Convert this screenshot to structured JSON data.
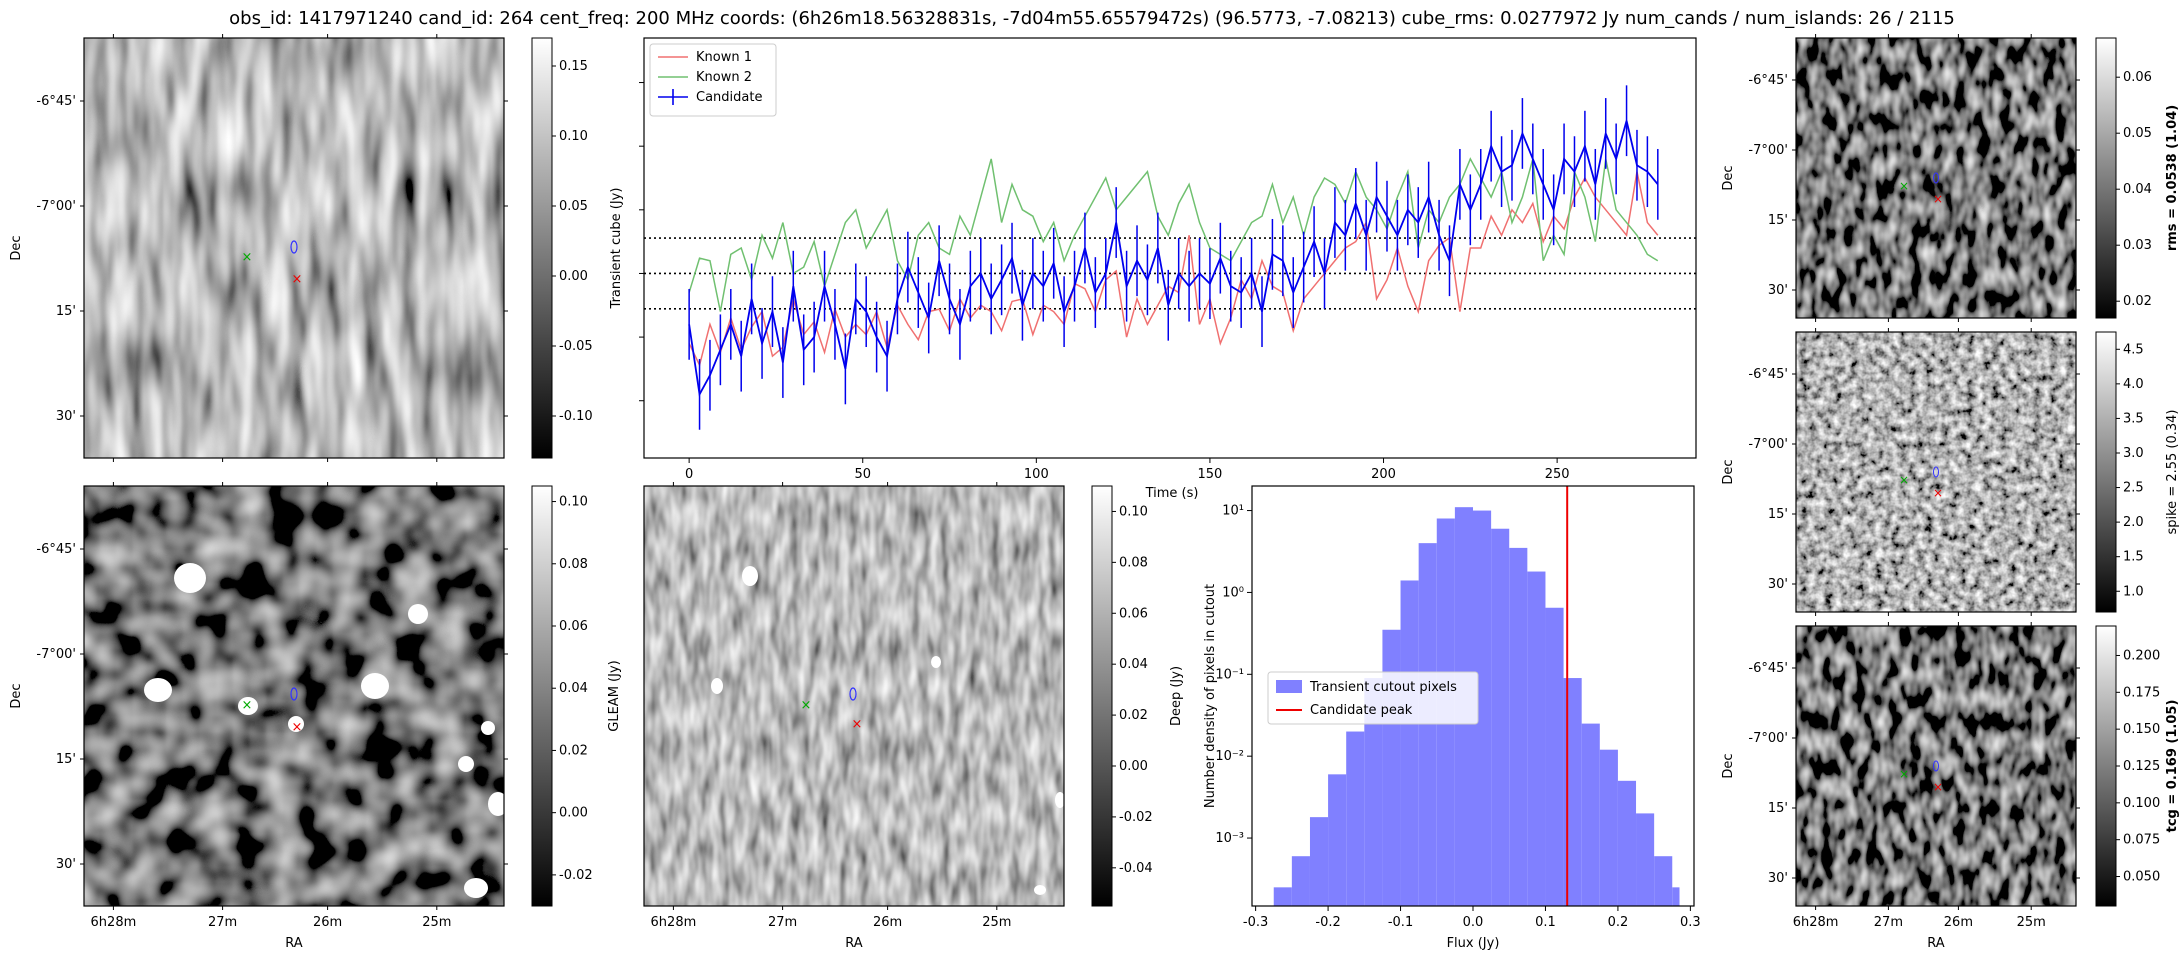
{
  "title": "obs_id: 1417971240 cand_id: 264 cent_freq: 200 MHz coords: (6h26m18.56328831s, -7d04m55.65579472s) (96.5773, -7.08213) cube_rms: 0.0277972 Jy num_cands / num_islands: 26 / 2115",
  "ra_ticks": [
    "28",
    "27",
    "26",
    "25"
  ],
  "ra_ticks_top": [
    "6h28m",
    "27m",
    "26m",
    "25m"
  ],
  "dec_ticks": [
    "-6°45'",
    "-7°00'",
    "15'",
    "30'"
  ],
  "colors": {
    "known1": "#f07070",
    "known2": "#70c070",
    "candidate": "#0000ee",
    "hist": "#8080ff",
    "peak": "#ee0000"
  },
  "chart_data": [
    {
      "type": "image",
      "name": "transient-cutout",
      "xlabel": "",
      "ylabel": "Dec",
      "colorbar_label": "",
      "colorbar_ticks": [
        "0.15",
        "0.10",
        "0.05",
        "0.00",
        "-0.05",
        "-0.10"
      ],
      "colorbar_range": [
        -0.13,
        0.17
      ]
    },
    {
      "type": "line",
      "title": "",
      "xlabel": "Time (s)",
      "ylabel": "Transient cube (Jy)",
      "xlim": [
        -13,
        290
      ],
      "ylim": [
        -0.145,
        0.185
      ],
      "x_ticks": [
        "0",
        "50",
        "100",
        "150",
        "200",
        "250"
      ],
      "legend": [
        "Known 1",
        "Known 2",
        "Candidate"
      ],
      "hlines": [
        -0.0278,
        0,
        0.0278
      ],
      "series": [
        {
          "name": "Known 1",
          "values": [
            -0.055,
            -0.072,
            -0.04,
            -0.062,
            -0.035,
            -0.06,
            -0.042,
            -0.03,
            -0.065,
            -0.058,
            -0.02,
            -0.048,
            -0.038,
            -0.062,
            -0.028,
            -0.05,
            -0.04,
            -0.048,
            -0.03,
            -0.058,
            -0.025,
            -0.04,
            -0.052,
            -0.03,
            -0.028,
            -0.045,
            -0.02,
            -0.035,
            -0.025,
            -0.03,
            -0.045,
            -0.022,
            -0.02,
            -0.048,
            -0.025,
            -0.03,
            -0.04,
            -0.008,
            -0.012,
            -0.03,
            -0.005,
            0.002,
            -0.05,
            -0.02,
            -0.04,
            -0.025,
            -0.01,
            -0.015,
            0.03,
            -0.04,
            -0.02,
            -0.055,
            -0.035,
            -0.005,
            -0.02,
            0.01,
            -0.01,
            -0.015,
            -0.045,
            -0.02,
            -0.01,
            0.0,
            0.01,
            0.02,
            0.025,
            0.04,
            -0.02,
            -0.005,
            0.02,
            -0.01,
            -0.03,
            0.01,
            0.022,
            0.028,
            -0.03,
            0.02,
            0.02,
            0.045,
            0.03,
            0.05,
            0.04,
            0.055,
            0.025,
            0.045,
            0.035,
            0.06,
            0.075,
            0.06,
            0.05,
            0.04,
            0.03,
            0.08,
            0.04,
            0.03
          ]
        },
        {
          "name": "Known 2",
          "values": [
            -0.015,
            0.012,
            0.01,
            -0.03,
            0.015,
            0.02,
            -0.005,
            0.03,
            0.012,
            0.04,
            0.0,
            0.005,
            0.025,
            -0.01,
            0.015,
            0.04,
            0.05,
            0.02,
            0.035,
            0.05,
            0.01,
            -0.005,
            0.03,
            0.04,
            0.02,
            0.015,
            0.045,
            0.03,
            0.06,
            0.09,
            0.04,
            0.07,
            0.05,
            0.045,
            0.025,
            0.04,
            0.01,
            0.03,
            0.045,
            0.06,
            0.075,
            0.05,
            0.06,
            0.07,
            0.08,
            0.045,
            0.03,
            0.055,
            0.07,
            0.04,
            0.02,
            0.015,
            0.01,
            0.025,
            0.04,
            0.045,
            0.07,
            0.04,
            0.06,
            0.03,
            0.06,
            0.075,
            0.07,
            0.055,
            0.08,
            0.06,
            0.05,
            0.035,
            0.06,
            0.08,
            0.02,
            0.05,
            0.04,
            0.06,
            0.07,
            0.09,
            0.075,
            0.06,
            0.08,
            0.04,
            0.06,
            0.09,
            0.01,
            0.03,
            0.015,
            0.08,
            0.06,
            0.025,
            0.09,
            0.05,
            0.04,
            0.03,
            0.015,
            0.01
          ]
        },
        {
          "name": "Candidate",
          "values": [
            -0.04,
            -0.095,
            -0.08,
            -0.06,
            -0.04,
            -0.065,
            -0.02,
            -0.055,
            -0.03,
            -0.07,
            -0.01,
            -0.06,
            -0.05,
            -0.01,
            -0.04,
            -0.075,
            -0.02,
            -0.03,
            -0.05,
            -0.065,
            -0.02,
            0.005,
            -0.015,
            -0.035,
            0.01,
            -0.02,
            -0.04,
            -0.01,
            0.0,
            -0.02,
            -0.005,
            0.012,
            -0.025,
            0.0,
            -0.01,
            0.008,
            -0.03,
            -0.01,
            0.02,
            -0.015,
            0.0,
            0.04,
            -0.01,
            0.01,
            -0.005,
            0.02,
            -0.025,
            0.0,
            -0.01,
            0.0,
            -0.008,
            0.012,
            -0.01,
            -0.015,
            0.0,
            -0.03,
            0.015,
            0.01,
            -0.015,
            0.005,
            0.025,
            0.0,
            0.04,
            0.03,
            0.055,
            0.03,
            0.06,
            0.045,
            0.03,
            0.05,
            0.04,
            0.06,
            0.03,
            0.01,
            0.07,
            0.05,
            0.07,
            0.1,
            0.08,
            0.085,
            0.11,
            0.09,
            0.07,
            0.05,
            0.09,
            0.08,
            0.1,
            0.07,
            0.11,
            0.09,
            0.12,
            0.085,
            0.08,
            0.07
          ]
        }
      ]
    },
    {
      "type": "image",
      "name": "rms-cutout",
      "ylabel": "Dec",
      "colorbar_label": "rms = 0.0538 (1.04)",
      "colorbar_ticks": [
        "0.06",
        "0.05",
        "0.04",
        "0.03",
        "0.02"
      ],
      "colorbar_range": [
        0.017,
        0.067
      ]
    },
    {
      "type": "image",
      "name": "gleam-cutout",
      "xlabel": "RA",
      "ylabel": "Dec",
      "colorbar_label": "GLEAM (Jy)",
      "colorbar_ticks": [
        "0.10",
        "0.08",
        "0.06",
        "0.04",
        "0.02",
        "0.00",
        "-0.02"
      ],
      "colorbar_range": [
        -0.03,
        0.105
      ]
    },
    {
      "type": "image",
      "name": "deep-cutout",
      "xlabel": "RA",
      "ylabel": "",
      "colorbar_label": "Deep (Jy)",
      "colorbar_ticks": [
        "0.10",
        "0.08",
        "0.06",
        "0.04",
        "0.02",
        "0.00",
        "-0.02",
        "-0.04"
      ],
      "colorbar_range": [
        -0.055,
        0.11
      ]
    },
    {
      "type": "histogram",
      "xlabel": "Flux (Jy)",
      "ylabel": "Number density of pixels in cutout",
      "x_ticks": [
        "-0.3",
        "-0.2",
        "-0.1",
        "0.0",
        "0.1",
        "0.2",
        "0.3"
      ],
      "y_ticks": [
        "10¹",
        "10⁰",
        "10⁻¹",
        "10⁻²",
        "10⁻³"
      ],
      "xlim": [
        -0.305,
        0.305
      ],
      "ylim_log10": [
        -3.83,
        1.3
      ],
      "legend": [
        "Transient cutout pixels",
        "Candidate peak"
      ],
      "bin_edges": [
        -0.275,
        -0.25,
        -0.225,
        -0.2,
        -0.175,
        -0.15,
        -0.125,
        -0.1,
        -0.075,
        -0.05,
        -0.025,
        0.0,
        0.025,
        0.05,
        0.075,
        0.1,
        0.125,
        0.15,
        0.175,
        0.2,
        0.225,
        0.25,
        0.275,
        0.285
      ],
      "values": [
        0.00025,
        0.0006,
        0.0018,
        0.006,
        0.02,
        0.09,
        0.35,
        1.4,
        4.0,
        8.0,
        11.0,
        10.0,
        6.0,
        3.5,
        1.8,
        0.65,
        0.09,
        0.025,
        0.012,
        0.005,
        0.002,
        0.0006,
        0.00025
      ],
      "peak": 0.13
    },
    {
      "type": "image",
      "name": "spike-cutout",
      "ylabel": "Dec",
      "colorbar_label": "spike = 2.55 (0.34)",
      "colorbar_ticks": [
        "4.5",
        "4.0",
        "3.5",
        "3.0",
        "2.5",
        "2.0",
        "1.5",
        "1.0"
      ],
      "colorbar_range": [
        0.7,
        4.75
      ]
    },
    {
      "type": "image",
      "name": "tcg-cutout",
      "xlabel": "RA",
      "ylabel": "Dec",
      "colorbar_label": "tcg = 0.169 (1.05)",
      "colorbar_ticks": [
        "0.200",
        "0.175",
        "0.150",
        "0.125",
        "0.100",
        "0.075",
        "0.050"
      ],
      "colorbar_range": [
        0.03,
        0.22
      ]
    }
  ]
}
